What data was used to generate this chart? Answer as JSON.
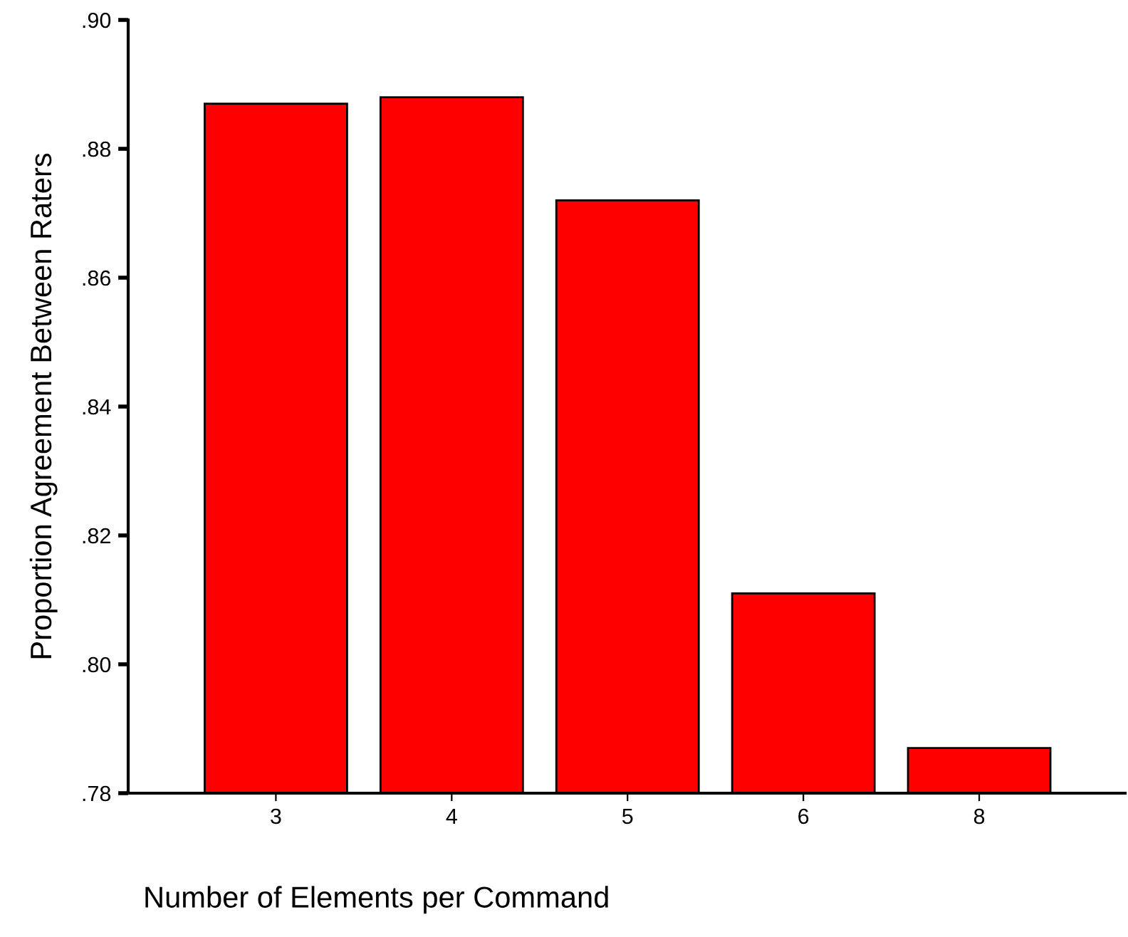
{
  "chart_data": {
    "type": "bar",
    "xlabel": "Number of Elements per Command",
    "ylabel": "Proportion Agreement Between Raters",
    "categories": [
      "3",
      "4",
      "5",
      "6",
      "8"
    ],
    "values": [
      0.887,
      0.888,
      0.872,
      0.811,
      0.787
    ],
    "color": "#ff0000",
    "ylim": [
      0.78,
      0.9
    ],
    "yticks": [
      {
        "value": 0.78,
        "label": ".78"
      },
      {
        "value": 0.8,
        "label": ".80"
      },
      {
        "value": 0.82,
        "label": ".82"
      },
      {
        "value": 0.84,
        "label": ".84"
      },
      {
        "value": 0.86,
        "label": ".86"
      },
      {
        "value": 0.88,
        "label": ".88"
      },
      {
        "value": 0.9,
        "label": ".90"
      }
    ],
    "grid": false
  }
}
